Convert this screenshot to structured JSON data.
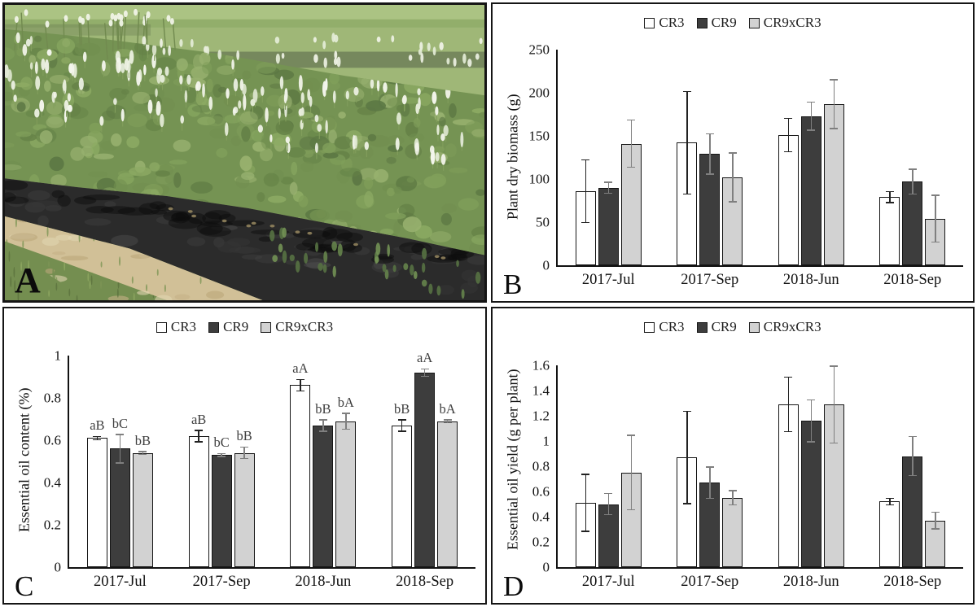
{
  "panel_labels": [
    "A",
    "B",
    "C",
    "D"
  ],
  "photo": {
    "label": "A",
    "depicts": "Field rows of flowering catnip plants with white flower spikes growing through black plastic mulch beside a sandy path and grass"
  },
  "legend_labels": [
    "CR3",
    "CR9",
    "CR9xCR3"
  ],
  "colors": {
    "cr3_fill": "#ffffff",
    "cr9_fill": "#3d3d3d",
    "cr9xcr3_fill": "#d2d2d2",
    "axis": "#121212",
    "error_dark": "#222222",
    "error_gray": "#7f7f7f",
    "annotation": "#3f3f3f"
  },
  "chart_data": [
    {
      "panel": "B",
      "type": "bar",
      "title": "",
      "ylabel": "Plant dry biomass (g)",
      "xlabel": "",
      "ymax": 250,
      "yticks": [
        0,
        50,
        100,
        150,
        200,
        250
      ],
      "ytick_labels": [
        "0",
        "50",
        "100",
        "150",
        "200",
        "250"
      ],
      "categories": [
        "2017-Jul",
        "2017-Sep",
        "2018-Jun",
        "2018-Sep"
      ],
      "grid": false,
      "legend_position": "top",
      "series": [
        {
          "name": "CR3",
          "fill": "#ffffff",
          "err_color": "#222222",
          "values": [
            86,
            142,
            151,
            79
          ],
          "errors": [
            37,
            60,
            20,
            7
          ]
        },
        {
          "name": "CR9",
          "fill": "#3d3d3d",
          "err_color": "#7f7f7f",
          "values": [
            90,
            129,
            173,
            97
          ],
          "errors": [
            7,
            24,
            17,
            15
          ]
        },
        {
          "name": "CR9xCR3",
          "fill": "#d2d2d2",
          "err_color": "#7f7f7f",
          "values": [
            141,
            102,
            187,
            54
          ],
          "errors": [
            28,
            29,
            29,
            28
          ]
        }
      ]
    },
    {
      "panel": "C",
      "type": "bar",
      "title": "",
      "ylabel": "Essential oil content (%)",
      "xlabel": "",
      "ymax": 1,
      "yticks": [
        0,
        0.2,
        0.4,
        0.6,
        0.8,
        1
      ],
      "ytick_labels": [
        "0",
        "0.2",
        "0.4",
        "0.6",
        "0.8",
        "1"
      ],
      "categories": [
        "2017-Jul",
        "2017-Sep",
        "2018-Jun",
        "2018-Sep"
      ],
      "grid": false,
      "legend_position": "top",
      "annotation_color": "#3f3f3f",
      "series": [
        {
          "name": "CR3",
          "fill": "#ffffff",
          "err_color": "#222222",
          "values": [
            0.61,
            0.62,
            0.86,
            0.67
          ],
          "errors": [
            0.01,
            0.03,
            0.03,
            0.03
          ],
          "letters": [
            "aB",
            "aB",
            "aA",
            "bB"
          ]
        },
        {
          "name": "CR9",
          "fill": "#3d3d3d",
          "err_color": "#7f7f7f",
          "values": [
            0.56,
            0.53,
            0.67,
            0.92
          ],
          "errors": [
            0.07,
            0.01,
            0.03,
            0.02
          ],
          "letters": [
            "bC",
            "bC",
            "bB",
            "aA"
          ]
        },
        {
          "name": "CR9xCR3",
          "fill": "#d2d2d2",
          "err_color": "#7f7f7f",
          "values": [
            0.54,
            0.54,
            0.69,
            0.69
          ],
          "errors": [
            0.01,
            0.03,
            0.04,
            0.01
          ],
          "letters": [
            "bB",
            "bB",
            "bA",
            "bA"
          ]
        }
      ]
    },
    {
      "panel": "D",
      "type": "bar",
      "title": "",
      "ylabel": "Essential oil yield (g per plant)",
      "xlabel": "",
      "ymax": 1.6,
      "yticks": [
        0,
        0.2,
        0.4,
        0.6,
        0.8,
        1,
        1.2,
        1.4,
        1.6
      ],
      "ytick_labels": [
        "0",
        "0.2",
        "0.4",
        "0.6",
        "0.8",
        "1",
        "1.2",
        "1.4",
        "1.6"
      ],
      "categories": [
        "2017-Jul",
        "2017-Sep",
        "2018-Jun",
        "2018-Sep"
      ],
      "grid": false,
      "legend_position": "top",
      "series": [
        {
          "name": "CR3",
          "fill": "#ffffff",
          "err_color": "#222222",
          "values": [
            0.51,
            0.87,
            1.29,
            0.52
          ],
          "errors": [
            0.23,
            0.37,
            0.22,
            0.03
          ]
        },
        {
          "name": "CR9",
          "fill": "#3d3d3d",
          "err_color": "#7f7f7f",
          "values": [
            0.5,
            0.67,
            1.16,
            0.88
          ],
          "errors": [
            0.09,
            0.13,
            0.17,
            0.16
          ]
        },
        {
          "name": "CR9xCR3",
          "fill": "#d2d2d2",
          "err_color": "#7f7f7f",
          "values": [
            0.75,
            0.55,
            1.29,
            0.37
          ],
          "errors": [
            0.3,
            0.06,
            0.31,
            0.07
          ]
        }
      ]
    }
  ]
}
